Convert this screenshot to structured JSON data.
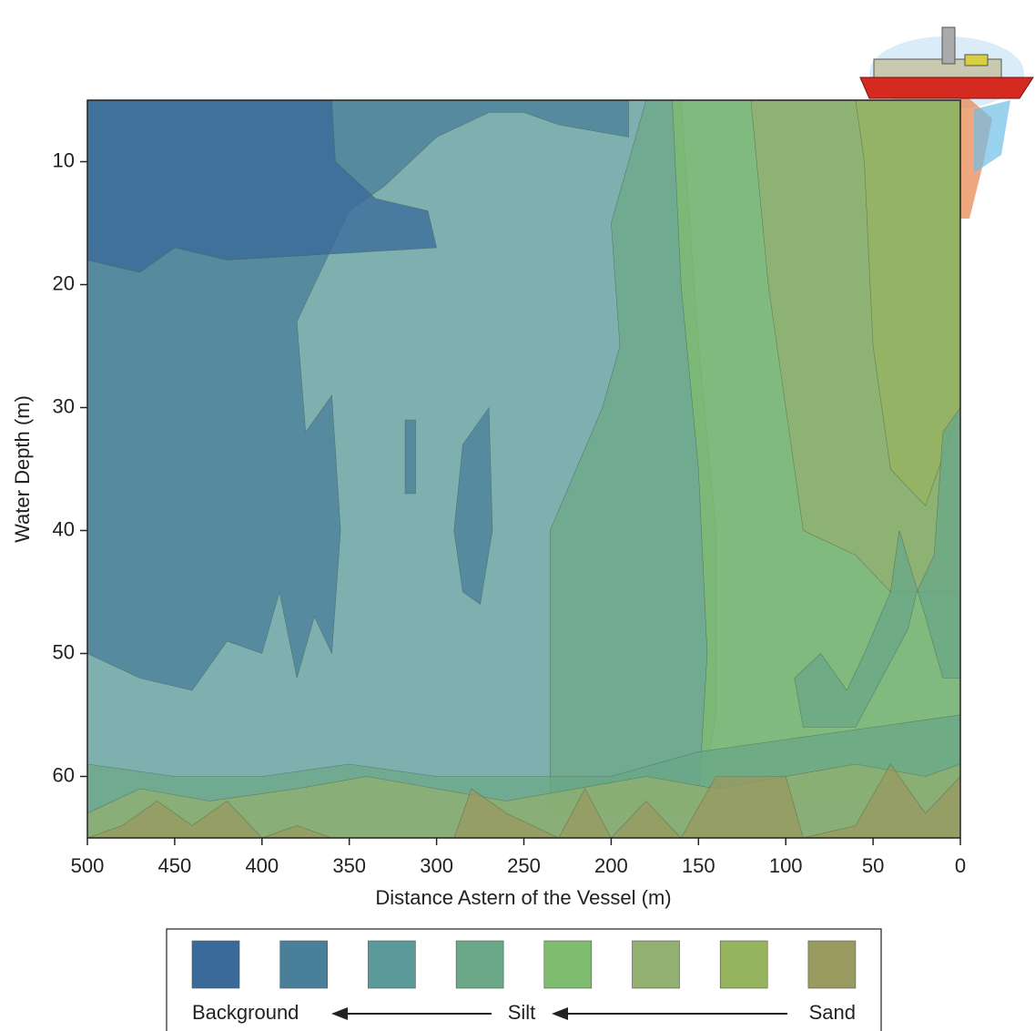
{
  "chart_data": {
    "type": "contour",
    "x_label": "Distance Astern of the Vessel (m)",
    "y_label": "Water Depth (m)",
    "xlim": [
      500,
      0
    ],
    "ylim": [
      5,
      65
    ],
    "xticks": [
      500,
      450,
      400,
      350,
      300,
      250,
      200,
      150,
      100,
      50,
      0
    ],
    "yticks": [
      10,
      20,
      30,
      40,
      50,
      60
    ],
    "levels": [
      "#3a6a9a",
      "#4a7f9a",
      "#5a9a9a",
      "#6aa888",
      "#80bc70",
      "#92b070",
      "#96b460",
      "#989a60"
    ],
    "legend_labels": [
      "Background",
      "Silt",
      "Sand"
    ],
    "regions": [
      {
        "level": 2,
        "points": [
          [
            500,
            5
          ],
          [
            0,
            5
          ],
          [
            0,
            65
          ],
          [
            500,
            65
          ]
        ]
      },
      {
        "level": 1,
        "points": [
          [
            500,
            5
          ],
          [
            190,
            5
          ],
          [
            190,
            8
          ],
          [
            230,
            7
          ],
          [
            250,
            6
          ],
          [
            270,
            6
          ],
          [
            300,
            8
          ],
          [
            330,
            12
          ],
          [
            350,
            14
          ],
          [
            380,
            23
          ],
          [
            375,
            32
          ],
          [
            360,
            29
          ],
          [
            355,
            40
          ],
          [
            360,
            50
          ],
          [
            370,
            47
          ],
          [
            380,
            52
          ],
          [
            390,
            45
          ],
          [
            400,
            50
          ],
          [
            420,
            49
          ],
          [
            440,
            53
          ],
          [
            470,
            52
          ],
          [
            500,
            50
          ]
        ]
      },
      {
        "level": 0,
        "points": [
          [
            500,
            5
          ],
          [
            360,
            5
          ],
          [
            358,
            10
          ],
          [
            335,
            13
          ],
          [
            305,
            14
          ],
          [
            300,
            17
          ],
          [
            420,
            18
          ],
          [
            450,
            17
          ],
          [
            470,
            19
          ],
          [
            500,
            18
          ]
        ]
      },
      {
        "level": 1,
        "points": [
          [
            318,
            31
          ],
          [
            312,
            31
          ],
          [
            312,
            37
          ],
          [
            318,
            37
          ]
        ]
      },
      {
        "level": 1,
        "points": [
          [
            270,
            30
          ],
          [
            285,
            33
          ],
          [
            290,
            40
          ],
          [
            285,
            45
          ],
          [
            275,
            46
          ],
          [
            268,
            40
          ]
        ]
      },
      {
        "level": 3,
        "points": [
          [
            180,
            5
          ],
          [
            160,
            5
          ],
          [
            150,
            25
          ],
          [
            140,
            40
          ],
          [
            140,
            55
          ],
          [
            150,
            63
          ],
          [
            235,
            63
          ],
          [
            235,
            40
          ],
          [
            220,
            35
          ],
          [
            205,
            30
          ],
          [
            195,
            25
          ],
          [
            200,
            15
          ]
        ]
      },
      {
        "level": 4,
        "points": [
          [
            165,
            5
          ],
          [
            0,
            5
          ],
          [
            0,
            62
          ],
          [
            150,
            62
          ],
          [
            145,
            50
          ],
          [
            150,
            35
          ],
          [
            160,
            20
          ]
        ]
      },
      {
        "level": 5,
        "points": [
          [
            120,
            5
          ],
          [
            0,
            5
          ],
          [
            0,
            45
          ],
          [
            40,
            45
          ],
          [
            60,
            42
          ],
          [
            90,
            40
          ],
          [
            100,
            30
          ],
          [
            110,
            20
          ]
        ]
      },
      {
        "level": 6,
        "points": [
          [
            60,
            5
          ],
          [
            0,
            5
          ],
          [
            0,
            30
          ],
          [
            20,
            38
          ],
          [
            40,
            35
          ],
          [
            50,
            25
          ],
          [
            55,
            10
          ]
        ]
      },
      {
        "level": 3,
        "points": [
          [
            0,
            30
          ],
          [
            10,
            32
          ],
          [
            15,
            42
          ],
          [
            25,
            45
          ],
          [
            30,
            48
          ],
          [
            60,
            56
          ],
          [
            90,
            56
          ],
          [
            95,
            52
          ],
          [
            80,
            50
          ],
          [
            65,
            53
          ],
          [
            55,
            50
          ],
          [
            40,
            45
          ],
          [
            35,
            40
          ],
          [
            20,
            47
          ],
          [
            10,
            52
          ],
          [
            0,
            52
          ]
        ]
      },
      {
        "level": 3,
        "points": [
          [
            500,
            59
          ],
          [
            450,
            60
          ],
          [
            400,
            60
          ],
          [
            350,
            59
          ],
          [
            300,
            60
          ],
          [
            250,
            60
          ],
          [
            200,
            60
          ],
          [
            150,
            58
          ],
          [
            100,
            57
          ],
          [
            50,
            56
          ],
          [
            0,
            55
          ],
          [
            0,
            65
          ],
          [
            500,
            65
          ]
        ]
      },
      {
        "level": 5,
        "points": [
          [
            500,
            63
          ],
          [
            470,
            61
          ],
          [
            430,
            62
          ],
          [
            380,
            61
          ],
          [
            340,
            60
          ],
          [
            300,
            61
          ],
          [
            260,
            62
          ],
          [
            220,
            61
          ],
          [
            180,
            60
          ],
          [
            140,
            61
          ],
          [
            100,
            60
          ],
          [
            60,
            59
          ],
          [
            20,
            60
          ],
          [
            0,
            59
          ],
          [
            0,
            65
          ],
          [
            500,
            65
          ]
        ]
      },
      {
        "level": 7,
        "points": [
          [
            500,
            65
          ],
          [
            480,
            64
          ],
          [
            460,
            62
          ],
          [
            440,
            64
          ],
          [
            420,
            62
          ],
          [
            400,
            65
          ],
          [
            380,
            64
          ],
          [
            360,
            65
          ],
          [
            290,
            65
          ],
          [
            280,
            61
          ],
          [
            260,
            63
          ],
          [
            230,
            65
          ],
          [
            215,
            61
          ],
          [
            200,
            65
          ],
          [
            180,
            62
          ],
          [
            160,
            65
          ],
          [
            140,
            60
          ],
          [
            100,
            60
          ],
          [
            90,
            65
          ],
          [
            60,
            64
          ],
          [
            40,
            59
          ],
          [
            20,
            63
          ],
          [
            0,
            60
          ],
          [
            0,
            65
          ]
        ]
      }
    ]
  }
}
